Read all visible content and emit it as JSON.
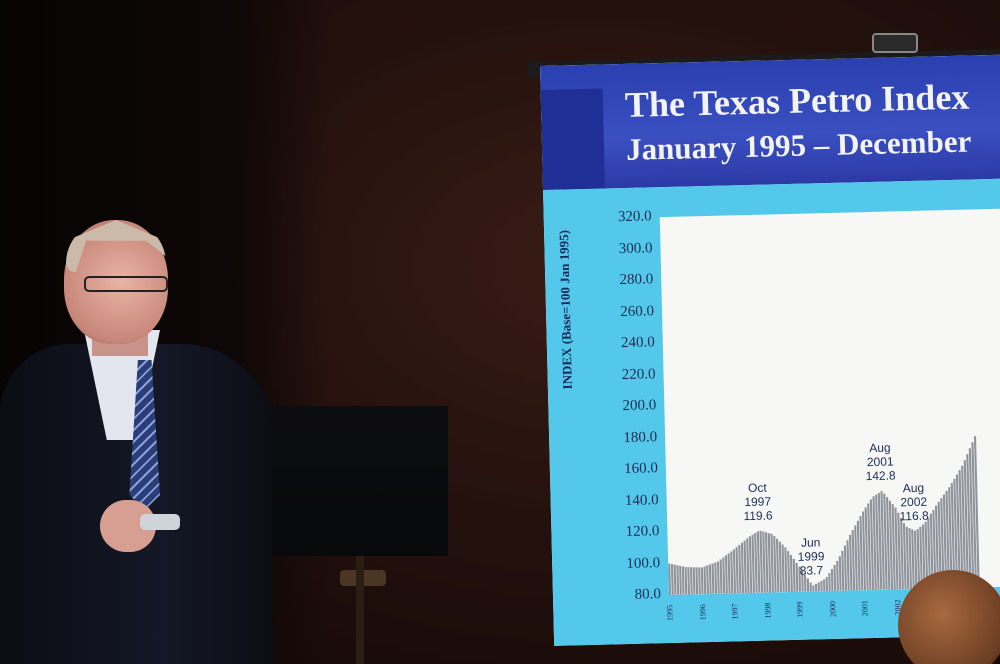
{
  "slide": {
    "title": "The Texas Petro Index",
    "subtitle": "January 1995 – December"
  },
  "chart_data": {
    "type": "area",
    "ylabel": "INDEX (Base=100 Jan 1995)",
    "ylim": [
      80,
      320
    ],
    "yticks": [
      "320.0",
      "300.0",
      "280.0",
      "260.0",
      "240.0",
      "220.0",
      "200.0",
      "180.0",
      "160.0",
      "140.0",
      "120.0",
      "100.0",
      "80.0"
    ],
    "xticks": [
      "1995",
      "1996",
      "1997",
      "1998",
      "1999",
      "2000",
      "2001",
      "2002"
    ],
    "annotations": [
      {
        "label": "Oct\n1997\n119.6",
        "x": 1997.8,
        "y": 119.6
      },
      {
        "label": "Jun\n1999\n83.7",
        "x": 1999.4,
        "y": 83.7
      },
      {
        "label": "Aug\n2001\n142.8",
        "x": 2001.6,
        "y": 142.8
      },
      {
        "label": "Aug\n2002\n116.8",
        "x": 2002.6,
        "y": 116.8
      }
    ],
    "series": [
      {
        "x": [
          1995.0,
          1995.5,
          1996.0,
          1996.5,
          1997.0,
          1997.5,
          1997.8,
          1998.2,
          1998.6,
          1999.0,
          1999.4,
          1999.8,
          2000.2,
          2000.6,
          2001.0,
          2001.3,
          2001.6,
          2002.0,
          2002.3,
          2002.6,
          2002.9,
          2003.3,
          2003.7,
          2004.1,
          2004.5
        ],
        "values": [
          100.0,
          97.5,
          97.0,
          100.5,
          108.0,
          116.0,
          119.6,
          117.0,
          108.0,
          96.0,
          83.7,
          88.0,
          100.0,
          116.0,
          130.0,
          139.0,
          142.8,
          132.0,
          120.0,
          116.8,
          122.0,
          134.0,
          145.0,
          158.0,
          176.0
        ]
      }
    ],
    "grid": false,
    "colors": {
      "area": "#8f949c",
      "plot_bg": "#f7f7f5",
      "frame_bg": "#54c8ea",
      "header_bg": "#2a3fb0"
    }
  }
}
